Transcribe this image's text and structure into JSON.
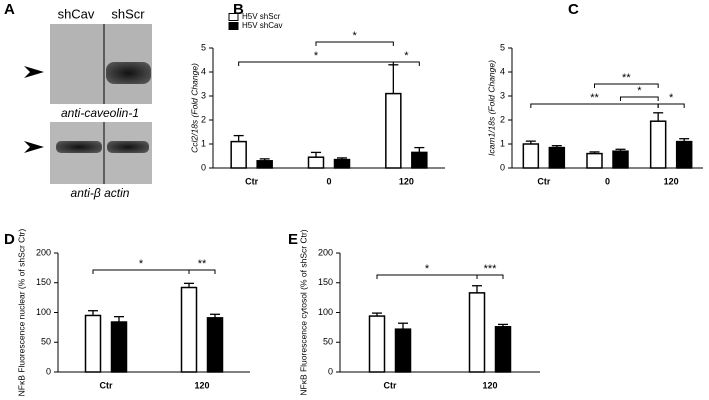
{
  "blot": {
    "panel": "A",
    "lanes": [
      "shCav",
      "shScr"
    ],
    "labels": [
      "anti-caveolin-1",
      "anti-β actin"
    ]
  },
  "chart_data": [
    {
      "type": "bar",
      "panel": "B",
      "ylabel": "Ccl2/18s (Fold Change)",
      "categories": [
        "Ctr",
        "0",
        "120"
      ],
      "ylim": [
        0,
        5
      ],
      "yticks": [
        0,
        1,
        2,
        3,
        4,
        5
      ],
      "legend": "upper left",
      "series": [
        {
          "name": "H5V shScr",
          "color": "#ffffff",
          "values": [
            1.1,
            0.45,
            3.1
          ],
          "errors": [
            0.25,
            0.2,
            1.2
          ]
        },
        {
          "name": "H5V shCav",
          "color": "#000000",
          "values": [
            0.3,
            0.35,
            0.65
          ],
          "errors": [
            0.08,
            0.07,
            0.2
          ]
        }
      ],
      "annotations": [
        "*",
        "*",
        "*"
      ]
    },
    {
      "type": "bar",
      "panel": "C",
      "ylabel": "Icam1/18s (Fold Change)",
      "categories": [
        "Ctr",
        "0",
        "120"
      ],
      "ylim": [
        0,
        5
      ],
      "yticks": [
        0,
        1,
        2,
        3,
        4,
        5
      ],
      "series": [
        {
          "color": "#ffffff",
          "values": [
            1.0,
            0.6,
            1.95
          ],
          "errors": [
            0.12,
            0.07,
            0.35
          ]
        },
        {
          "color": "#000000",
          "values": [
            0.85,
            0.7,
            1.1
          ],
          "errors": [
            0.08,
            0.08,
            0.12
          ]
        }
      ],
      "annotations": [
        "**",
        "*",
        "**",
        "*"
      ]
    },
    {
      "type": "bar",
      "panel": "D",
      "ylabel": "NFκB Fluorescence nuclear (% of shScr Ctr)",
      "categories": [
        "Ctr",
        "120"
      ],
      "ylim": [
        0,
        200
      ],
      "yticks": [
        0,
        50,
        100,
        150,
        200
      ],
      "series": [
        {
          "color": "#ffffff",
          "values": [
            95,
            142
          ],
          "errors": [
            8,
            7
          ]
        },
        {
          "color": "#000000",
          "values": [
            84,
            91
          ],
          "errors": [
            9,
            6
          ]
        }
      ],
      "annotations": [
        "*",
        "**"
      ]
    },
    {
      "type": "bar",
      "panel": "E",
      "ylabel": "NFκB Fluorescence cytosol (% of shScr Ctr)",
      "categories": [
        "Ctr",
        "120"
      ],
      "ylim": [
        0,
        200
      ],
      "yticks": [
        0,
        50,
        100,
        150,
        200
      ],
      "series": [
        {
          "color": "#ffffff",
          "values": [
            94,
            133
          ],
          "errors": [
            5,
            12
          ]
        },
        {
          "color": "#000000",
          "values": [
            72,
            76
          ],
          "errors": [
            10,
            4
          ]
        }
      ],
      "annotations": [
        "*",
        "***"
      ]
    }
  ]
}
